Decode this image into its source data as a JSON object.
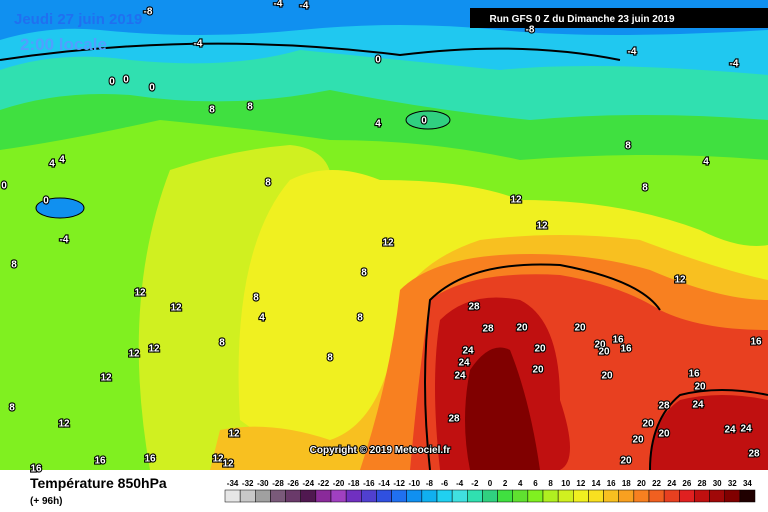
{
  "header": {
    "date": "Jeudi 27 juin 2019",
    "time": "2:00 locale",
    "run": "Run GFS 0 Z du Dimanche 23 juin 2019"
  },
  "copyright": "Copyright © 2019 Meteociel.fr",
  "legend": {
    "title": "Température 850hPa",
    "subtitle": "(+ 96h)",
    "ticks": [
      -34,
      -32,
      -30,
      -28,
      -26,
      -24,
      -22,
      -20,
      -18,
      -16,
      -14,
      -12,
      -10,
      -8,
      -6,
      -4,
      -2,
      0,
      2,
      4,
      6,
      8,
      10,
      12,
      14,
      16,
      18,
      20,
      22,
      24,
      26,
      28,
      30,
      32,
      34
    ],
    "colors": [
      "#e6e6e6",
      "#c8c8c8",
      "#a0a0a0",
      "#7a5a7a",
      "#6a3a6a",
      "#501850",
      "#8a2a9a",
      "#a040c0",
      "#7030c0",
      "#5040d0",
      "#3050e0",
      "#2070f0",
      "#1090f0",
      "#10b0f0",
      "#20d0f0",
      "#40e0e0",
      "#30e0b0",
      "#30d080",
      "#40e040",
      "#60e030",
      "#80f020",
      "#b0f020",
      "#d0f020",
      "#f0f020",
      "#f8e020",
      "#f8c020",
      "#f8a020",
      "#f88020",
      "#f06020",
      "#e84020",
      "#e02020",
      "#c01010",
      "#a00808",
      "#800000",
      "#200000"
    ]
  },
  "contour_labels": [
    "-8",
    "-4",
    "-4",
    "-8",
    "-4",
    "-4",
    "-4",
    "0",
    "0",
    "0",
    "0",
    "8",
    "8",
    "4",
    "0",
    "8",
    "4",
    "4",
    "4",
    "0",
    "0",
    "8",
    "8",
    "12",
    "12",
    "-4",
    "12",
    "8",
    "8",
    "12",
    "12",
    "12",
    "8",
    "4",
    "8",
    "8",
    "28",
    "28",
    "20",
    "20",
    "16",
    "20",
    "20",
    "16",
    "24",
    "20",
    "24",
    "12",
    "12",
    "8",
    "16",
    "24",
    "20",
    "20",
    "16",
    "12",
    "20",
    "8",
    "24",
    "28",
    "28",
    "12",
    "20",
    "20",
    "24",
    "24",
    "12",
    "20",
    "16",
    "16",
    "12",
    "12",
    "16",
    "20",
    "28"
  ]
}
